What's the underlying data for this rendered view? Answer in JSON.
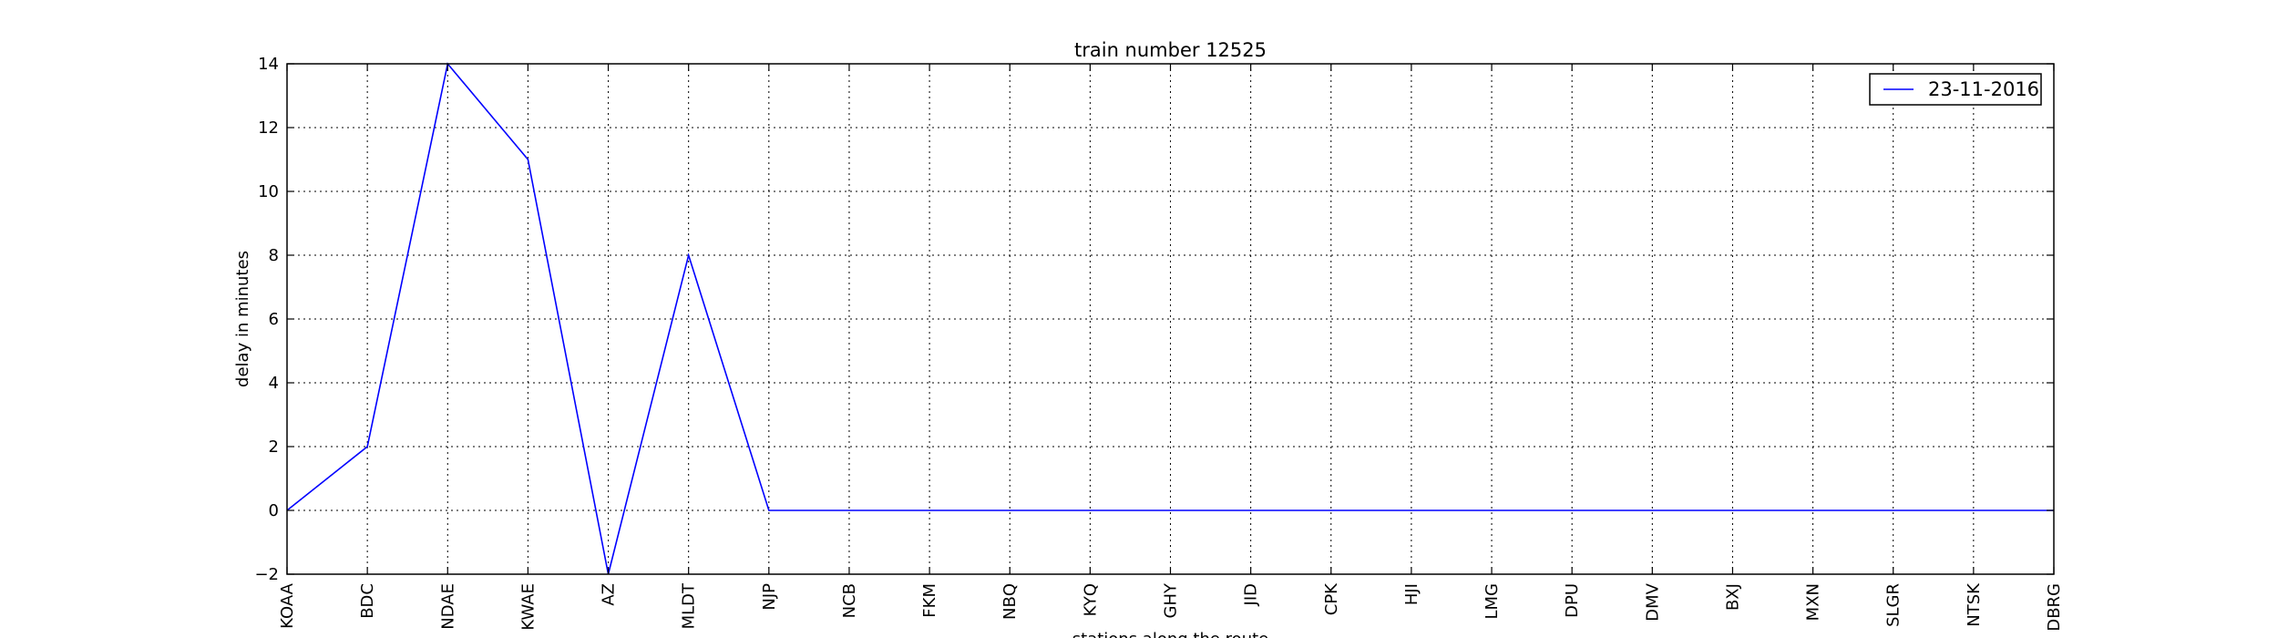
{
  "chart_data": {
    "type": "line",
    "title": "train number 12525",
    "xlabel": "stations along the route",
    "ylabel": "delay in minutes",
    "categories": [
      "KOAA",
      "BDC",
      "NDAE",
      "KWAE",
      "AZ",
      "MLDT",
      "NJP",
      "NCB",
      "FKM",
      "NBQ",
      "KYQ",
      "GHY",
      "JID",
      "CPK",
      "HJI",
      "LMG",
      "DPU",
      "DMV",
      "BXJ",
      "MXN",
      "SLGR",
      "NTSK",
      "DBRG"
    ],
    "series": [
      {
        "name": "23-11-2016",
        "values": [
          0,
          2,
          14,
          11,
          -2,
          8,
          0,
          0,
          0,
          0,
          0,
          0,
          0,
          0,
          0,
          0,
          0,
          0,
          0,
          0,
          0,
          0,
          0
        ],
        "color": "#0000ff"
      }
    ],
    "ylim": [
      -2,
      14
    ],
    "yticks": [
      -2,
      0,
      2,
      4,
      6,
      8,
      10,
      12,
      14
    ],
    "grid": true,
    "legend_position": "top-right"
  }
}
